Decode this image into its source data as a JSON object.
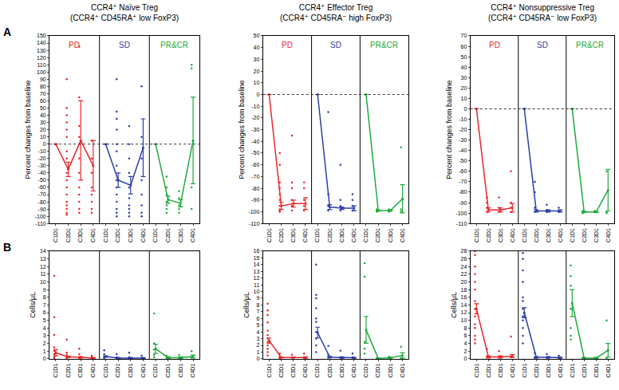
{
  "chart_data": [
    {
      "type": "scatter",
      "panel_label": "A",
      "title": "CCR4⁺ Naïve Treg\n(CCR4⁺ CD45RA⁺ low FoxP3)",
      "y_label": "Percent changes from baseline",
      "categories": [
        "C1D1",
        "C2D1",
        "C3D1",
        "C4D1"
      ],
      "ylim": [
        -110,
        150
      ],
      "yticks": [
        -110,
        -100,
        -90,
        -80,
        -70,
        -60,
        -50,
        -40,
        -30,
        -20,
        -10,
        0,
        10,
        20,
        30,
        40,
        50,
        60,
        70,
        80,
        90,
        100,
        110,
        120,
        130,
        140,
        150
      ],
      "baseline": 0,
      "series": [
        {
          "name": "PD",
          "color": "#e8262b",
          "values": [
            0,
            -35,
            5,
            -30
          ],
          "error": [
            null,
            10,
            55,
            35
          ],
          "points": [
            [],
            [
              90,
              50,
              40,
              30,
              20,
              10,
              -10,
              -20,
              -40,
              -50,
              -60,
              -70,
              -80,
              -85,
              -90,
              -95,
              -98
            ],
            [
              135,
              65,
              25,
              10,
              -20,
              -40,
              -60,
              -70,
              -80,
              -90,
              -95
            ],
            [
              5,
              -20,
              -40,
              -60,
              -70,
              -80,
              -90,
              -95
            ]
          ]
        },
        {
          "name": "SD",
          "color": "#2b3ea6",
          "values": [
            0,
            -50,
            -57,
            -5
          ],
          "error": [
            null,
            10,
            12,
            40
          ],
          "points": [
            [],
            [
              90,
              45,
              35,
              20,
              0,
              -10,
              -30,
              -50,
              -60,
              -70,
              -80,
              -90,
              -95,
              -100
            ],
            [
              25,
              0,
              -20,
              -40,
              -60,
              -75,
              -85,
              -90,
              -95,
              -100
            ],
            [
              80,
              10,
              -20,
              -50,
              -70,
              -85,
              -95,
              -100
            ]
          ]
        },
        {
          "name": "PR&CR",
          "color": "#1faa3c",
          "values": [
            0,
            -77,
            -82,
            5
          ],
          "error": [
            null,
            5,
            5,
            60
          ],
          "points": [
            [],
            [
              -45,
              -60,
              -70,
              -80,
              -85,
              -90,
              -95
            ],
            [
              -65,
              -75,
              -85,
              -90,
              -95
            ],
            [
              110,
              105,
              -60,
              -90
            ]
          ]
        }
      ]
    },
    {
      "type": "scatter",
      "title": "CCR4⁺ Effector Treg\n(CCR4⁺ CD45RA⁻ high FoxP3)",
      "y_label": "Percent changes from baseline",
      "categories": [
        "C1D1",
        "C2D1",
        "C3D1",
        "C4D1"
      ],
      "ylim": [
        -110,
        50
      ],
      "yticks": [
        -110,
        -100,
        -90,
        -80,
        -70,
        -60,
        -50,
        -40,
        -30,
        -20,
        -10,
        0,
        10,
        20,
        30,
        40,
        50
      ],
      "baseline": 0,
      "series": [
        {
          "name": "PD",
          "color": "#e8262b",
          "values": [
            0,
            -95,
            -93,
            -93
          ],
          "error": [
            null,
            3,
            3,
            5
          ],
          "points": [
            [],
            [
              -50,
              -60,
              -75,
              -80,
              -85,
              -90,
              -95,
              -98,
              -99,
              -100
            ],
            [
              -35,
              -75,
              -80,
              -90,
              -95,
              -99
            ],
            [
              -75,
              -80,
              -90,
              -95,
              -99
            ]
          ]
        },
        {
          "name": "SD",
          "color": "#2b3ea6",
          "values": [
            0,
            -96,
            -97,
            -97
          ],
          "error": [
            null,
            2,
            1,
            2
          ],
          "points": [
            [],
            [
              -15,
              -85,
              -95,
              -99
            ],
            [
              -60,
              -90,
              -95,
              -99
            ],
            [
              -85,
              -90,
              -95,
              -99
            ]
          ]
        },
        {
          "name": "PR&CR",
          "color": "#1faa3c",
          "values": [
            0,
            -99,
            -99,
            -89
          ],
          "error": [
            null,
            0.5,
            0.5,
            12
          ],
          "points": [
            [],
            [
              -98,
              -99,
              -100
            ],
            [
              -98,
              -99,
              -100
            ],
            [
              -45,
              -98,
              -100
            ]
          ]
        }
      ]
    },
    {
      "type": "scatter",
      "title": "CCR4⁺ Nonsuppressive Treg\n(CCR4⁺ CD45RA⁻ low FoxP3)",
      "y_label": "Percent changes from baseline",
      "categories": [
        "C1D1",
        "C2D1",
        "C3D1",
        "C4D1"
      ],
      "ylim": [
        -110,
        70
      ],
      "yticks": [
        -110,
        -100,
        -90,
        -80,
        -70,
        -60,
        -50,
        -40,
        -30,
        -20,
        -10,
        0,
        10,
        20,
        30,
        40,
        50,
        60,
        70
      ],
      "baseline": 0,
      "series": [
        {
          "name": "PD",
          "color": "#e8262b",
          "values": [
            0,
            -97,
            -97,
            -95
          ],
          "error": [
            null,
            2,
            2,
            4
          ],
          "points": [
            [],
            [
              -85,
              -90,
              -95,
              -99
            ],
            [
              -85,
              -95,
              -99
            ],
            [
              -60,
              -90,
              -95,
              -99
            ]
          ]
        },
        {
          "name": "SD",
          "color": "#2b3ea6",
          "values": [
            0,
            -98,
            -98,
            -98
          ],
          "error": [
            null,
            1,
            1,
            1
          ],
          "points": [
            [],
            [
              -70,
              -80,
              -95,
              -99
            ],
            [
              -92,
              -97,
              -99
            ],
            [
              -95,
              -99
            ]
          ]
        },
        {
          "name": "PR&CR",
          "color": "#1faa3c",
          "values": [
            0,
            -99,
            -99,
            -78
          ],
          "error": [
            null,
            0.5,
            0.5,
            20
          ],
          "points": [
            [],
            [
              -98,
              -99,
              -100
            ],
            [
              -98,
              -99
            ],
            [
              -60,
              -99,
              -100
            ]
          ]
        }
      ]
    },
    {
      "type": "scatter",
      "panel_label": "B",
      "y_label": "Cells/μL",
      "categories": [
        "C1D1",
        "C2D1",
        "C3D1",
        "C4D1"
      ],
      "ylim": [
        0,
        14
      ],
      "yticks": [
        0,
        1,
        2,
        3,
        4,
        5,
        6,
        7,
        8,
        9,
        10,
        11,
        12,
        13,
        14
      ],
      "series": [
        {
          "color": "#e8262b",
          "values": [
            0.8,
            0.25,
            0.2,
            0.1
          ],
          "error": [
            0.4,
            0.1,
            0.1,
            0.05
          ],
          "points": [
            [
              10.8,
              5.4,
              3.1,
              1.5,
              1.0,
              0.6,
              0.3,
              0.1
            ],
            [
              2.5,
              0.8,
              0.5,
              0.2,
              0.1
            ],
            [
              1.3,
              0.6,
              0.2,
              0.1
            ],
            [
              0.4,
              0.2,
              0.1
            ]
          ]
        },
        {
          "color": "#2b3ea6",
          "values": [
            0.3,
            0.1,
            0.1,
            0.1
          ],
          "error": [
            0.1,
            0.05,
            0.05,
            0.05
          ],
          "points": [
            [
              1.1,
              0.6,
              0.3,
              0.1
            ],
            [
              0.6,
              0.2,
              0.1
            ],
            [
              0.8,
              0.2,
              0.1
            ],
            [
              0.4,
              0.1
            ]
          ]
        },
        {
          "color": "#1faa3c",
          "values": [
            1.3,
            0.15,
            0.15,
            0.3
          ],
          "error": [
            0.6,
            0.1,
            0.1,
            0.2
          ],
          "points": [
            [
              5.9,
              2.0,
              1.2,
              0.5,
              0.2
            ],
            [
              0.4,
              0.1
            ],
            [
              0.5,
              0.1
            ],
            [
              1.0,
              0.2
            ]
          ]
        }
      ]
    },
    {
      "type": "scatter",
      "y_label": "Cells/μL",
      "categories": [
        "C1D1",
        "C2D1",
        "C3D1",
        "C4D1"
      ],
      "ylim": [
        0,
        16
      ],
      "yticks": [
        0,
        1,
        2,
        3,
        4,
        5,
        6,
        7,
        8,
        9,
        10,
        11,
        12,
        13,
        14,
        15,
        16
      ],
      "series": [
        {
          "color": "#e8262b",
          "values": [
            2.7,
            0.2,
            0.2,
            0.2
          ],
          "error": [
            0.4,
            0.05,
            0.05,
            0.1
          ],
          "points": [
            [
              8.2,
              7.2,
              6.5,
              5.4,
              4.2,
              3.5,
              3.0,
              2.5,
              2.0,
              1.5,
              1.0,
              0.5
            ],
            [
              0.8,
              0.3,
              0.1
            ],
            [
              0.6,
              0.2
            ],
            [
              0.8,
              0.2
            ]
          ]
        },
        {
          "color": "#2b3ea6",
          "values": [
            3.9,
            0.25,
            0.2,
            0.15
          ],
          "error": [
            0.8,
            0.1,
            0.1,
            0.05
          ],
          "points": [
            [
              14.0,
              9.5,
              9.0,
              7.5,
              6.0,
              5.5,
              4.0,
              3.0,
              2.0,
              1.0
            ],
            [
              1.9,
              0.6,
              0.2
            ],
            [
              1.2,
              0.2
            ],
            [
              0.8,
              0.2
            ]
          ]
        },
        {
          "color": "#1faa3c",
          "values": [
            4.3,
            0.05,
            0.15,
            0.5
          ],
          "error": [
            2.0,
            0.05,
            0.05,
            0.4
          ],
          "points": [
            [
              14.2,
              12.2,
              2.5,
              1.5,
              0.8
            ],
            [
              0.1
            ],
            [
              0.3,
              0.1
            ],
            [
              1.8,
              0.1
            ]
          ]
        }
      ]
    },
    {
      "type": "scatter",
      "y_label": "Cells/μL",
      "categories": [
        "C1D1",
        "C2D1",
        "C3D1",
        "C4D1"
      ],
      "ylim": [
        0,
        28
      ],
      "yticks": [
        0,
        2,
        4,
        6,
        8,
        10,
        12,
        14,
        16,
        18,
        20,
        22,
        24,
        26,
        28
      ],
      "series": [
        {
          "color": "#e8262b",
          "values": [
            13.0,
            0.5,
            0.5,
            0.7
          ],
          "error": [
            1.3,
            0.3,
            0.3,
            0.4
          ],
          "points": [
            [
              28,
              27,
              24,
              22,
              20,
              18,
              15,
              13,
              11,
              9,
              8,
              6,
              5,
              4
            ],
            [
              2.5,
              0.5
            ],
            [
              2.0,
              0.5
            ],
            [
              5.8,
              0.5
            ]
          ]
        },
        {
          "color": "#2b3ea6",
          "values": [
            12.0,
            0.4,
            0.4,
            0.3
          ],
          "error": [
            1.3,
            0.2,
            0.2,
            0.1
          ],
          "points": [
            [
              27.5,
              26,
              23,
              20,
              16,
              15,
              13,
              11,
              10,
              8,
              6,
              4
            ],
            [
              1.5,
              0.3
            ],
            [
              1.2,
              0.3
            ],
            [
              0.8,
              0.2
            ]
          ]
        },
        {
          "color": "#1faa3c",
          "values": [
            14.5,
            0.2,
            0.2,
            2.2
          ],
          "error": [
            3.5,
            0.1,
            0.1,
            1.8
          ],
          "points": [
            [
              24.3,
              21.5,
              19,
              13,
              8,
              6,
              5
            ],
            [
              0.3
            ],
            [
              0.3
            ],
            [
              10.0,
              0.2
            ]
          ]
        }
      ]
    }
  ]
}
